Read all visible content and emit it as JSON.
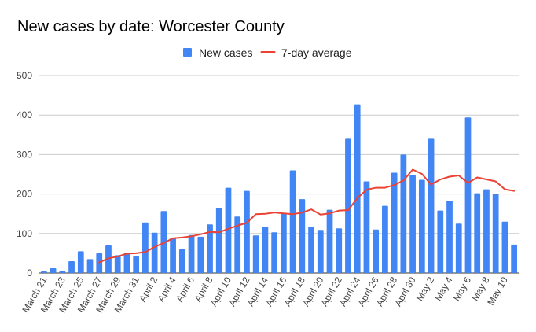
{
  "chart_data": {
    "type": "bar",
    "title": "New cases by date: Worcester County",
    "xlabel": "",
    "ylabel": "",
    "ylim": [
      0,
      500
    ],
    "yticks": [
      0,
      100,
      200,
      300,
      400,
      500
    ],
    "grid": true,
    "legend_position": "top",
    "categories": [
      "March 21",
      "March 22",
      "March 23",
      "March 24",
      "March 25",
      "March 26",
      "March 27",
      "March 28",
      "March 29",
      "March 30",
      "March 31",
      "April 1",
      "April 2",
      "April 3",
      "April 4",
      "April 5",
      "April 6",
      "April 7",
      "April 8",
      "April 9",
      "April 10",
      "April 11",
      "April 12",
      "April 13",
      "April 14",
      "April 15",
      "April 16",
      "April 17",
      "April 18",
      "April 19",
      "April 20",
      "April 21",
      "April 22",
      "April 23",
      "April 24",
      "April 25",
      "April 26",
      "April 27",
      "April 28",
      "April 29",
      "April 30",
      "May 1",
      "May 2",
      "May 3",
      "May 4",
      "May 5",
      "May 6",
      "May 7",
      "May 8",
      "May 9",
      "May 10",
      "May 11"
    ],
    "x_tick_labels": [
      "March 21",
      "March 23",
      "March 25",
      "March 27",
      "March 29",
      "March 31",
      "April 2",
      "April 4",
      "April 6",
      "April 8",
      "April 10",
      "April 12",
      "April 14",
      "April 16",
      "April 18",
      "April 20",
      "April 22",
      "April 24",
      "April 26",
      "April 28",
      "April 30",
      "May 2",
      "May 4",
      "May 6",
      "May 8",
      "May 10"
    ],
    "series": [
      {
        "name": "New cases",
        "type": "bar",
        "color": "#4285F4",
        "values": [
          4,
          12,
          5,
          30,
          55,
          35,
          50,
          70,
          45,
          50,
          42,
          128,
          102,
          157,
          88,
          60,
          96,
          92,
          123,
          164,
          216,
          143,
          208,
          95,
          117,
          103,
          152,
          260,
          187,
          117,
          109,
          160,
          113,
          340,
          427,
          232,
          110,
          170,
          254,
          300,
          248,
          236,
          340,
          158,
          183,
          125,
          394,
          202,
          212,
          200,
          130,
          72
        ]
      },
      {
        "name": "7-day average",
        "type": "line",
        "color": "#EA4335",
        "values": [
          null,
          null,
          null,
          null,
          null,
          null,
          27,
          37,
          42,
          49,
          50,
          53,
          66,
          76,
          88,
          90,
          93,
          98,
          104,
          103,
          112,
          120,
          127,
          149,
          150,
          153,
          151,
          149,
          153,
          161,
          148,
          151,
          158,
          159,
          190,
          211,
          216,
          216,
          223,
          234,
          262,
          251,
          224,
          237,
          244,
          247,
          228,
          242,
          237,
          232,
          212,
          208
        ]
      }
    ]
  }
}
